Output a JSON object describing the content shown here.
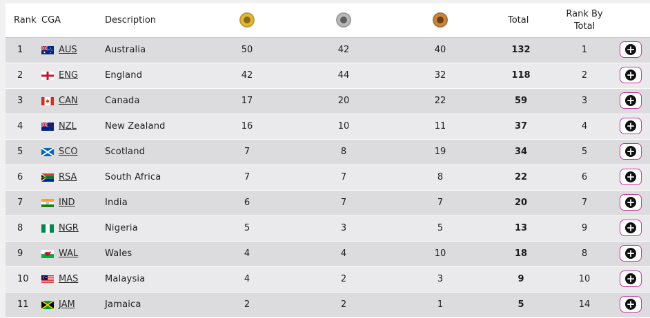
{
  "header": {
    "rank": "Rank",
    "cga": "CGA",
    "description": "Description",
    "gold_icon": "gold-medal-icon",
    "silver_icon": "silver-medal-icon",
    "bronze_icon": "bronze-medal-icon",
    "total": "Total",
    "rank_by_total_line1": "Rank By",
    "rank_by_total_line2": "Total"
  },
  "colors": {
    "gold": "#e0b73b",
    "silver": "#b9b9b9",
    "bronze": "#c9853f",
    "accent": "#c1359b"
  },
  "rows": [
    {
      "rank": "1",
      "code": "AUS",
      "flag": "australia-flag",
      "name": "Australia",
      "gold": "50",
      "silver": "42",
      "bronze": "40",
      "total": "132",
      "rank_total": "1"
    },
    {
      "rank": "2",
      "code": "ENG",
      "flag": "england-flag",
      "name": "England",
      "gold": "42",
      "silver": "44",
      "bronze": "32",
      "total": "118",
      "rank_total": "2"
    },
    {
      "rank": "3",
      "code": "CAN",
      "flag": "canada-flag",
      "name": "Canada",
      "gold": "17",
      "silver": "20",
      "bronze": "22",
      "total": "59",
      "rank_total": "3"
    },
    {
      "rank": "4",
      "code": "NZL",
      "flag": "new-zealand-flag",
      "name": "New Zealand",
      "gold": "16",
      "silver": "10",
      "bronze": "11",
      "total": "37",
      "rank_total": "4"
    },
    {
      "rank": "5",
      "code": "SCO",
      "flag": "scotland-flag",
      "name": "Scotland",
      "gold": "7",
      "silver": "8",
      "bronze": "19",
      "total": "34",
      "rank_total": "5"
    },
    {
      "rank": "6",
      "code": "RSA",
      "flag": "south-africa-flag",
      "name": "South Africa",
      "gold": "7",
      "silver": "7",
      "bronze": "8",
      "total": "22",
      "rank_total": "6"
    },
    {
      "rank": "7",
      "code": "IND",
      "flag": "india-flag",
      "name": "India",
      "gold": "6",
      "silver": "7",
      "bronze": "7",
      "total": "20",
      "rank_total": "7"
    },
    {
      "rank": "8",
      "code": "NGR",
      "flag": "nigeria-flag",
      "name": "Nigeria",
      "gold": "5",
      "silver": "3",
      "bronze": "5",
      "total": "13",
      "rank_total": "9"
    },
    {
      "rank": "9",
      "code": "WAL",
      "flag": "wales-flag",
      "name": "Wales",
      "gold": "4",
      "silver": "4",
      "bronze": "10",
      "total": "18",
      "rank_total": "8"
    },
    {
      "rank": "10",
      "code": "MAS",
      "flag": "malaysia-flag",
      "name": "Malaysia",
      "gold": "4",
      "silver": "2",
      "bronze": "3",
      "total": "9",
      "rank_total": "10"
    },
    {
      "rank": "11",
      "code": "JAM",
      "flag": "jamaica-flag",
      "name": "Jamaica",
      "gold": "2",
      "silver": "2",
      "bronze": "1",
      "total": "5",
      "rank_total": "14"
    }
  ],
  "expand_icon": "plus-circle-icon"
}
